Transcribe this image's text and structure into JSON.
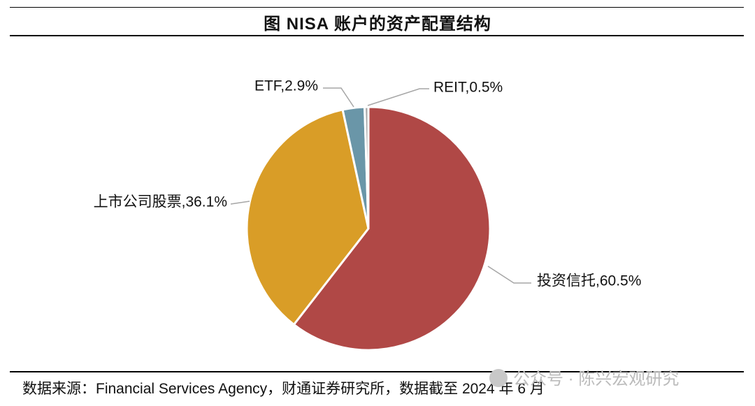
{
  "chart_data": {
    "type": "pie",
    "title": "图  NISA 账户的资产配置结构",
    "start": "top",
    "direction": "clockwise",
    "slices": [
      {
        "label": "投资信托",
        "value": 60.5,
        "display": "投资信托,60.5%",
        "color": "#B04846"
      },
      {
        "label": "上市公司股票",
        "value": 36.1,
        "display": "上市公司股票,36.1%",
        "color": "#D99D27"
      },
      {
        "label": "ETF",
        "value": 2.9,
        "display": "ETF,2.9%",
        "color": "#6A96A8"
      },
      {
        "label": "REIT",
        "value": 0.5,
        "display": "REIT,0.5%",
        "color": "#A9A9A9"
      }
    ]
  },
  "source": "数据来源：Financial Services Agency，财通证券研究所，数据截至 2024 年 6 月",
  "watermark": "公众号 · 陈兴宏观研究"
}
